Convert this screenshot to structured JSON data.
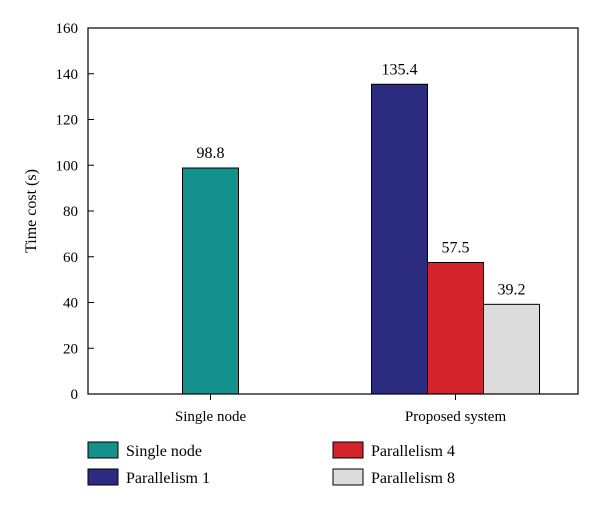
{
  "chart_data": {
    "type": "bar",
    "ylabel": "Time cost (s)",
    "xlabel": "",
    "ylim": [
      0,
      160
    ],
    "yticks": [
      0,
      20,
      40,
      60,
      80,
      100,
      120,
      140,
      160
    ],
    "grid": false,
    "legend_position": "bottom",
    "groups": [
      {
        "label": "Single node",
        "bars": [
          {
            "series": "Single node",
            "value": 98.8,
            "label": "98.8"
          }
        ]
      },
      {
        "label": "Proposed system",
        "bars": [
          {
            "series": "Parallelism 1",
            "value": 135.4,
            "label": "135.4"
          },
          {
            "series": "Parallelism 4",
            "value": 57.5,
            "label": "57.5"
          },
          {
            "series": "Parallelism 8",
            "value": 39.2,
            "label": "39.2"
          }
        ]
      }
    ],
    "series": [
      {
        "name": "Single node",
        "color": "#14918c"
      },
      {
        "name": "Parallelism 1",
        "color": "#2b2b7f"
      },
      {
        "name": "Parallelism 4",
        "color": "#d3232b"
      },
      {
        "name": "Parallelism 8",
        "color": "#dcdcdc"
      }
    ],
    "legend_order": [
      "Single node",
      "Parallelism 4",
      "Parallelism 1",
      "Parallelism 8"
    ]
  }
}
